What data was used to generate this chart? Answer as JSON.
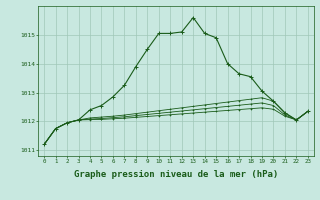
{
  "background_color": "#c8e8e0",
  "grid_color": "#a0c8b8",
  "line_color": "#1a5c1a",
  "xlabel": "Graphe pression niveau de la mer (hPa)",
  "xlabel_fontsize": 6.5,
  "xlim": [
    -0.5,
    23.5
  ],
  "ylim": [
    1010.8,
    1016.0
  ],
  "yticks": [
    1011,
    1012,
    1013,
    1014,
    1015
  ],
  "xticks": [
    0,
    1,
    2,
    3,
    4,
    5,
    6,
    7,
    8,
    9,
    10,
    11,
    12,
    13,
    14,
    15,
    16,
    17,
    18,
    19,
    20,
    21,
    22,
    23
  ],
  "series1": [
    1011.2,
    1011.75,
    1011.95,
    1012.05,
    1012.4,
    1012.55,
    1012.85,
    1013.25,
    1013.9,
    1014.5,
    1015.05,
    1015.05,
    1015.1,
    1015.6,
    1015.05,
    1014.9,
    1014.0,
    1013.65,
    1013.55,
    1013.05,
    1012.7,
    1012.3,
    1012.05,
    1012.35
  ],
  "series2": [
    1011.2,
    1011.75,
    1011.95,
    1012.05,
    1012.12,
    1012.15,
    1012.18,
    1012.22,
    1012.27,
    1012.32,
    1012.37,
    1012.42,
    1012.47,
    1012.52,
    1012.57,
    1012.62,
    1012.67,
    1012.72,
    1012.77,
    1012.82,
    1012.7,
    1012.28,
    1012.05,
    1012.35
  ],
  "series3": [
    1011.2,
    1011.75,
    1011.95,
    1012.05,
    1012.08,
    1012.1,
    1012.13,
    1012.16,
    1012.2,
    1012.24,
    1012.28,
    1012.32,
    1012.36,
    1012.4,
    1012.44,
    1012.48,
    1012.52,
    1012.56,
    1012.6,
    1012.64,
    1012.55,
    1012.22,
    1012.05,
    1012.35
  ],
  "series4": [
    1011.2,
    1011.75,
    1011.95,
    1012.05,
    1012.06,
    1012.07,
    1012.09,
    1012.11,
    1012.14,
    1012.17,
    1012.2,
    1012.23,
    1012.26,
    1012.29,
    1012.32,
    1012.35,
    1012.38,
    1012.41,
    1012.44,
    1012.47,
    1012.42,
    1012.18,
    1012.05,
    1012.35
  ]
}
